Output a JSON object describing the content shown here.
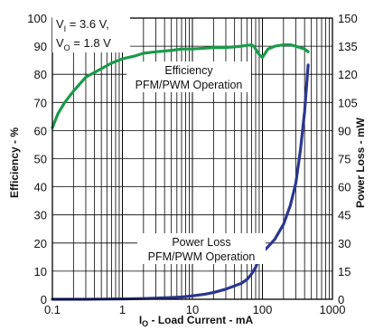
{
  "chart_data": {
    "type": "line",
    "xlabel_main": "I",
    "xlabel_sub": "O",
    "xlabel_rest": " - Load Current - mA",
    "ylabel_left": "Efficiency - %",
    "ylabel_right": "Power Loss - mW",
    "x_scale": "log",
    "xlim": [
      0.1,
      1000
    ],
    "ylim_left": [
      0,
      100
    ],
    "ylim_right": [
      0,
      150
    ],
    "x_ticks": [
      "0.1",
      "1",
      "10",
      "100",
      "1000"
    ],
    "y_left_ticks": [
      "0",
      "10",
      "20",
      "30",
      "40",
      "50",
      "60",
      "70",
      "80",
      "90",
      "100"
    ],
    "y_right_ticks": [
      "0",
      "15",
      "30",
      "45",
      "60",
      "75",
      "90",
      "105",
      "120",
      "135",
      "150"
    ],
    "grid": true,
    "conditions": {
      "line1_main": "V",
      "line1_sub": "I",
      "line1_rest": " = 3.6 V,",
      "line2_main": "V",
      "line2_sub": "O",
      "line2_rest": " = 1.8 V"
    },
    "annotations": {
      "efficiency_line1": "Efficiency",
      "efficiency_line2": "PFM/PWM Operation",
      "loss_line1": "Power Loss",
      "loss_line2": "PFM/PWM Operation"
    },
    "series": [
      {
        "axis": "left",
        "color": "#1b9a4b",
        "x": [
          0.1,
          0.12,
          0.15,
          0.2,
          0.3,
          0.5,
          0.7,
          1,
          1.5,
          2,
          3,
          5,
          7,
          10,
          20,
          30,
          50,
          70,
          75,
          80,
          90,
          100,
          120,
          150,
          200,
          250,
          300,
          400,
          450
        ],
        "y": [
          61,
          66,
          70,
          74,
          79,
          82,
          84,
          85.5,
          86.5,
          87.5,
          88,
          88.5,
          89,
          89,
          89.5,
          89.5,
          90,
          90.5,
          90,
          89,
          87,
          86,
          89,
          90,
          90.5,
          90.5,
          90,
          89,
          88
        ]
      },
      {
        "axis": "right",
        "color": "#2b3790",
        "x": [
          0.1,
          0.3,
          0.5,
          1,
          2,
          3,
          5,
          7,
          10,
          15,
          20,
          30,
          50,
          60,
          70,
          80,
          90,
          100,
          120,
          150,
          200,
          250,
          300,
          350,
          400,
          450
        ],
        "y": [
          0,
          0,
          0.1,
          0.2,
          0.4,
          0.6,
          0.9,
          1.2,
          1.8,
          2.7,
          3.6,
          5.4,
          8.5,
          10.5,
          13.5,
          17,
          22,
          25,
          28,
          32,
          40,
          50,
          62,
          80,
          100,
          125
        ]
      }
    ]
  }
}
